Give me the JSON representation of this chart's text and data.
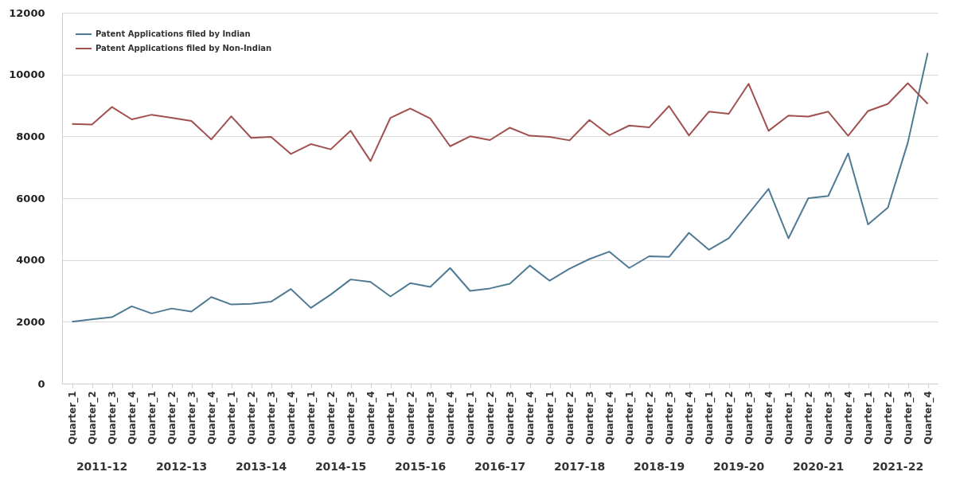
{
  "chart_data": {
    "type": "line",
    "categories": [
      "Quarter_1",
      "Quarter_2",
      "Quarter_3",
      "Quarter_4",
      "Quarter_1",
      "Quarter_2",
      "Quarter_3",
      "Quarter_4",
      "Quarter_1",
      "Quarter_2",
      "Quarter_3",
      "Quarter_4",
      "Quarter_1",
      "Quarter_2",
      "Quarter_3",
      "Quarter_4",
      "Quarter_1",
      "Quarter_2",
      "Quarter_3",
      "Quarter_4",
      "Quarter_1",
      "Quarter_2",
      "Quarter_3",
      "Quarter_4",
      "Quarter_1",
      "Quarter_2",
      "Quarter_3",
      "Quarter_4",
      "Quarter_1",
      "Quarter_2",
      "Quarter_3",
      "Quarter_4",
      "Quarter_1",
      "Quarter_2",
      "Quarter_3",
      "Quarter_4",
      "Quarter_1",
      "Quarter_2",
      "Quarter_3",
      "Quarter_4",
      "Quarter_1",
      "Quarter_2",
      "Quarter_3",
      "Quarter_4"
    ],
    "series": [
      {
        "name": "Patent Applications filed by Indian",
        "color": "#4f7a94",
        "values": [
          2000,
          2080,
          2150,
          2500,
          2270,
          2430,
          2330,
          2800,
          2560,
          2580,
          2650,
          3060,
          2450,
          2880,
          3370,
          3290,
          2820,
          3250,
          3130,
          3740,
          3000,
          3080,
          3230,
          3820,
          3330,
          3720,
          4030,
          4270,
          3740,
          4120,
          4100,
          4880,
          4330,
          4700,
          5500,
          6300,
          4700,
          6000,
          6070,
          7450,
          5150,
          5700,
          7800,
          10700
        ]
      },
      {
        "name": "Patent Applications filed by Non-Indian",
        "color": "#a0504f",
        "values": [
          8400,
          8380,
          8950,
          8550,
          8700,
          8600,
          8500,
          7900,
          8650,
          7950,
          7980,
          7430,
          7750,
          7580,
          8180,
          7200,
          8600,
          8900,
          8580,
          7680,
          8000,
          7880,
          8280,
          8020,
          7980,
          7870,
          8530,
          8040,
          8350,
          8290,
          8980,
          8030,
          8800,
          8730,
          9700,
          8180,
          8670,
          8640,
          8800,
          8020,
          8820,
          9050,
          9720,
          9050
        ]
      }
    ],
    "annotations": [
      "2011-12",
      "2012-13",
      "2013-14",
      "2014-15",
      "2015-16",
      "2016-17",
      "2017-18",
      "2018-19",
      "2019-20",
      "2020-21",
      "2021-22"
    ],
    "ylim": [
      0,
      12000
    ],
    "yticks": [
      0,
      {
        "value": 2000,
        "label": "2000"
      },
      {
        "value": 4000,
        "label": "4000"
      },
      {
        "value": 6000,
        "label": "6000"
      },
      {
        "value": 8000,
        "label": "8000"
      },
      {
        "value": 10000,
        "label": "10000"
      },
      {
        "value": 12000,
        "label": "12000"
      }
    ],
    "grid": "y",
    "legend": "top left"
  }
}
